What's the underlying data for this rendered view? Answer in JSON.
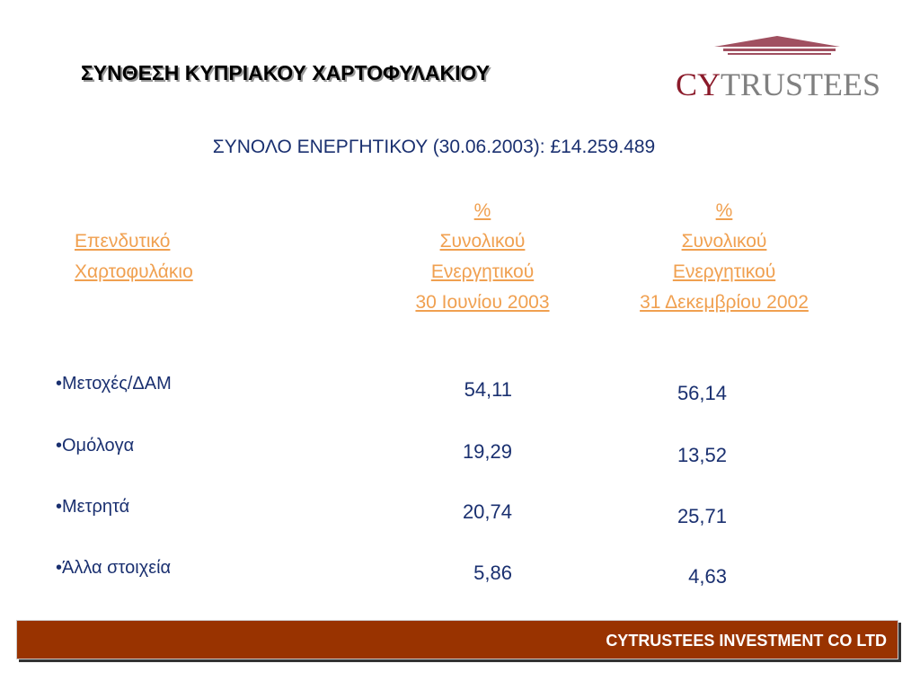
{
  "header": {
    "title": "ΣΥΝΘΕΣΗ ΚΥΠΡΙΑΚΟΥ ΧΑΡΤΟΦΥΛΑΚΙΟΥ",
    "logo": {
      "prefix": "CY",
      "suffix": "TRUSTEES"
    }
  },
  "subtitle": "ΣΥΝΟΛΟ ΕΝΕΡΓΗΤΙΚΟΥ (30.06.2003): £14.259.489",
  "table": {
    "columns": [
      [
        "Επενδυτικό",
        "Χαρτοφυλάκιο"
      ],
      [
        "%",
        "Συνολικού",
        "Ενεργητικού",
        "30 Ιουνίου 2003"
      ],
      [
        "%",
        "Συνολικού",
        "Ενεργητικού",
        "31 Δεκεμβρίου 2002"
      ]
    ],
    "rows": [
      [
        "•Μετοχές/ΔΑΜ",
        "54,11",
        "56,14"
      ],
      [
        "•Ομόλογα",
        "19,29",
        "13,52"
      ],
      [
        "•Μετρητά",
        "20,74",
        "25,71"
      ],
      [
        "•Άλλα στοιχεία",
        "5,86",
        "4,63"
      ]
    ]
  },
  "footer": "CYTRUSTEES INVESTMENT CO LTD"
}
